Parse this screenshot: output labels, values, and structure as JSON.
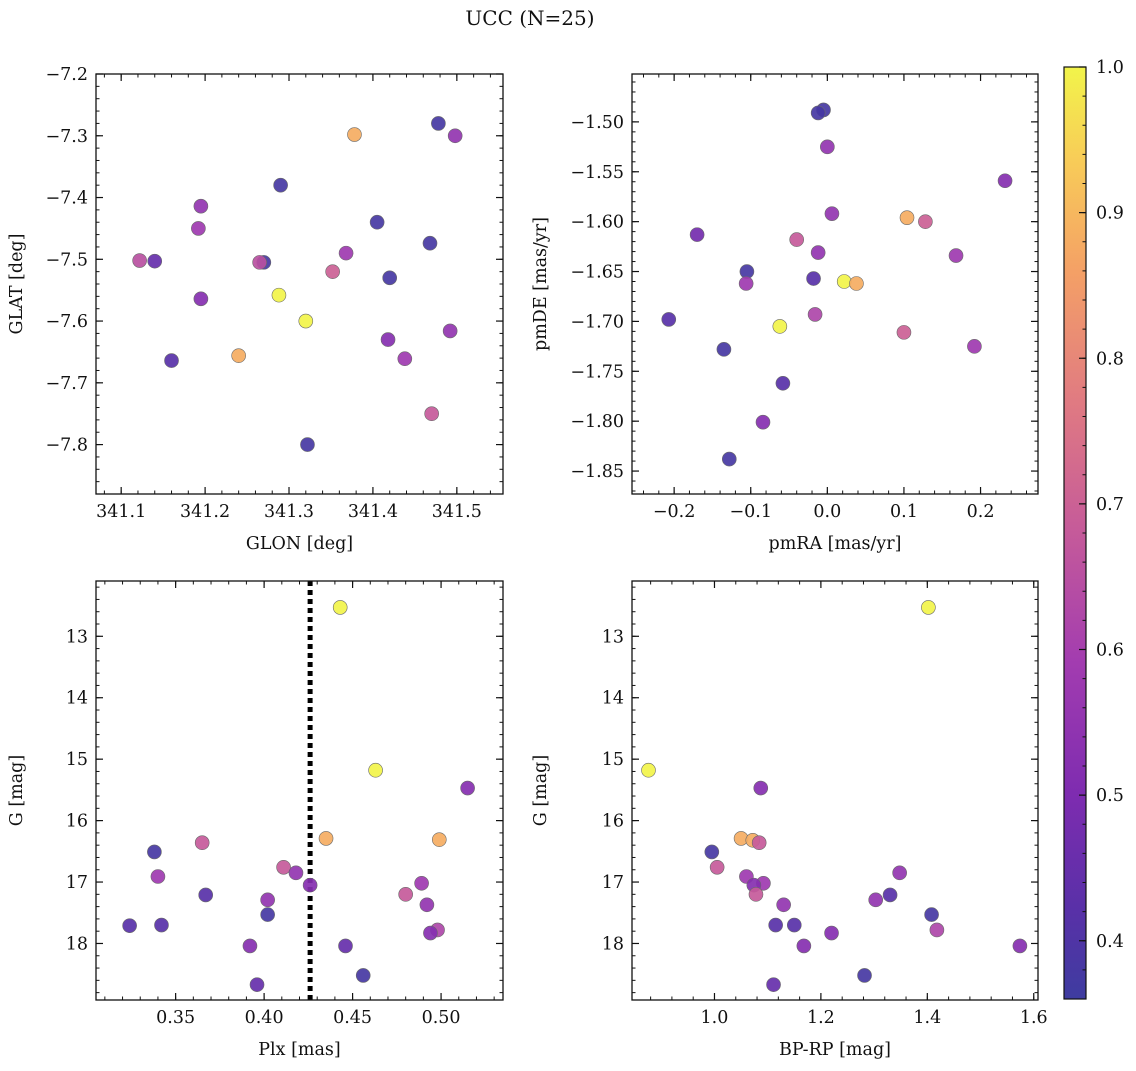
{
  "figure": {
    "title": "UCC (N=25)"
  },
  "chart_data": [
    {
      "type": "scatter",
      "title": "",
      "xlabel": "GLON [deg]",
      "ylabel": "GLAT [deg]",
      "xlim": [
        341.07,
        341.555
      ],
      "ylim": [
        -7.88,
        -7.2
      ],
      "y_inverted": false,
      "xticks": [
        341.1,
        341.2,
        341.3,
        341.4,
        341.5
      ],
      "xtick_labels": [
        "341.1",
        "341.2",
        "341.3",
        "341.4",
        "341.5"
      ],
      "yticks": [
        -7.2,
        -7.3,
        -7.4,
        -7.5,
        -7.6,
        -7.7,
        -7.8
      ],
      "ytick_labels": [
        "−7.2",
        "−7.3",
        "−7.4",
        "−7.5",
        "−7.6",
        "−7.7",
        "−7.8"
      ],
      "grid": false,
      "points": [
        {
          "x": 341.478,
          "y": -7.28,
          "c": 0.38
        },
        {
          "x": 341.498,
          "y": -7.3,
          "c": 0.55
        },
        {
          "x": 341.378,
          "y": -7.298,
          "c": 0.88
        },
        {
          "x": 341.29,
          "y": -7.38,
          "c": 0.38
        },
        {
          "x": 341.195,
          "y": -7.414,
          "c": 0.55
        },
        {
          "x": 341.192,
          "y": -7.45,
          "c": 0.58
        },
        {
          "x": 341.405,
          "y": -7.44,
          "c": 0.38
        },
        {
          "x": 341.468,
          "y": -7.474,
          "c": 0.38
        },
        {
          "x": 341.122,
          "y": -7.502,
          "c": 0.65
        },
        {
          "x": 341.14,
          "y": -7.503,
          "c": 0.45
        },
        {
          "x": 341.27,
          "y": -7.505,
          "c": 0.38
        },
        {
          "x": 341.265,
          "y": -7.505,
          "c": 0.65
        },
        {
          "x": 341.368,
          "y": -7.49,
          "c": 0.58
        },
        {
          "x": 341.352,
          "y": -7.52,
          "c": 0.7
        },
        {
          "x": 341.42,
          "y": -7.53,
          "c": 0.38
        },
        {
          "x": 341.288,
          "y": -7.558,
          "c": 1.0
        },
        {
          "x": 341.195,
          "y": -7.564,
          "c": 0.52
        },
        {
          "x": 341.32,
          "y": -7.6,
          "c": 1.0
        },
        {
          "x": 341.418,
          "y": -7.63,
          "c": 0.52
        },
        {
          "x": 341.492,
          "y": -7.616,
          "c": 0.55
        },
        {
          "x": 341.16,
          "y": -7.664,
          "c": 0.42
        },
        {
          "x": 341.24,
          "y": -7.656,
          "c": 0.88
        },
        {
          "x": 341.438,
          "y": -7.661,
          "c": 0.58
        },
        {
          "x": 341.47,
          "y": -7.75,
          "c": 0.68
        },
        {
          "x": 341.322,
          "y": -7.8,
          "c": 0.38
        }
      ]
    },
    {
      "type": "scatter",
      "title": "",
      "xlabel": "pmRA [mas/yr]",
      "ylabel": "pmDE [mas/yr]",
      "xlim": [
        -0.255,
        0.275
      ],
      "ylim": [
        -1.873,
        -1.452
      ],
      "y_inverted": false,
      "xticks": [
        -0.2,
        -0.1,
        0.0,
        0.1,
        0.2
      ],
      "xtick_labels": [
        "−0.2",
        "−0.1",
        "0.0",
        "0.1",
        "0.2"
      ],
      "yticks": [
        -1.5,
        -1.55,
        -1.6,
        -1.65,
        -1.7,
        -1.75,
        -1.8,
        -1.85
      ],
      "ytick_labels": [
        "−1.50",
        "−1.55",
        "−1.60",
        "−1.65",
        "−1.70",
        "−1.75",
        "−1.80",
        "−1.85"
      ],
      "grid": false,
      "points": [
        {
          "x": -0.005,
          "y": -1.488,
          "c": 0.38
        },
        {
          "x": -0.012,
          "y": -1.491,
          "c": 0.38
        },
        {
          "x": 0.0,
          "y": -1.525,
          "c": 0.55
        },
        {
          "x": 0.232,
          "y": -1.559,
          "c": 0.52
        },
        {
          "x": 0.006,
          "y": -1.592,
          "c": 0.55
        },
        {
          "x": 0.104,
          "y": -1.596,
          "c": 0.88
        },
        {
          "x": 0.128,
          "y": -1.6,
          "c": 0.7
        },
        {
          "x": -0.17,
          "y": -1.613,
          "c": 0.48
        },
        {
          "x": -0.04,
          "y": -1.618,
          "c": 0.68
        },
        {
          "x": -0.012,
          "y": -1.631,
          "c": 0.55
        },
        {
          "x": 0.168,
          "y": -1.634,
          "c": 0.58
        },
        {
          "x": -0.105,
          "y": -1.65,
          "c": 0.38
        },
        {
          "x": -0.018,
          "y": -1.657,
          "c": 0.42
        },
        {
          "x": 0.022,
          "y": -1.66,
          "c": 1.0
        },
        {
          "x": 0.038,
          "y": -1.662,
          "c": 0.88
        },
        {
          "x": -0.106,
          "y": -1.662,
          "c": 0.58
        },
        {
          "x": -0.016,
          "y": -1.693,
          "c": 0.62
        },
        {
          "x": -0.207,
          "y": -1.698,
          "c": 0.42
        },
        {
          "x": -0.062,
          "y": -1.705,
          "c": 1.0
        },
        {
          "x": 0.1,
          "y": -1.711,
          "c": 0.7
        },
        {
          "x": 0.192,
          "y": -1.725,
          "c": 0.58
        },
        {
          "x": -0.135,
          "y": -1.728,
          "c": 0.38
        },
        {
          "x": -0.058,
          "y": -1.762,
          "c": 0.42
        },
        {
          "x": -0.084,
          "y": -1.801,
          "c": 0.52
        },
        {
          "x": -0.128,
          "y": -1.838,
          "c": 0.38
        }
      ]
    },
    {
      "type": "scatter",
      "title": "",
      "xlabel": "Plx [mas]",
      "ylabel": "G [mag]",
      "xlim": [
        0.305,
        0.535
      ],
      "ylim": [
        18.92,
        12.1
      ],
      "y_inverted": true,
      "xticks": [
        0.35,
        0.4,
        0.45,
        0.5
      ],
      "xtick_labels": [
        "0.35",
        "0.40",
        "0.45",
        "0.50"
      ],
      "yticks": [
        13,
        14,
        15,
        16,
        17,
        18
      ],
      "ytick_labels": [
        "13",
        "14",
        "15",
        "16",
        "17",
        "18"
      ],
      "grid": false,
      "vline": {
        "x": 0.426,
        "style": "dotted",
        "color": "#000000"
      },
      "points": [
        {
          "x": 0.443,
          "y": 12.53,
          "c": 1.0
        },
        {
          "x": 0.463,
          "y": 15.18,
          "c": 1.0
        },
        {
          "x": 0.515,
          "y": 15.47,
          "c": 0.52
        },
        {
          "x": 0.435,
          "y": 16.29,
          "c": 0.88
        },
        {
          "x": 0.499,
          "y": 16.31,
          "c": 0.88
        },
        {
          "x": 0.365,
          "y": 16.36,
          "c": 0.68
        },
        {
          "x": 0.338,
          "y": 16.51,
          "c": 0.38
        },
        {
          "x": 0.411,
          "y": 16.76,
          "c": 0.68
        },
        {
          "x": 0.418,
          "y": 16.85,
          "c": 0.55
        },
        {
          "x": 0.34,
          "y": 16.91,
          "c": 0.58
        },
        {
          "x": 0.489,
          "y": 17.02,
          "c": 0.58
        },
        {
          "x": 0.426,
          "y": 17.05,
          "c": 0.52
        },
        {
          "x": 0.48,
          "y": 17.2,
          "c": 0.68
        },
        {
          "x": 0.367,
          "y": 17.21,
          "c": 0.42
        },
        {
          "x": 0.402,
          "y": 17.29,
          "c": 0.55
        },
        {
          "x": 0.492,
          "y": 17.37,
          "c": 0.55
        },
        {
          "x": 0.402,
          "y": 17.53,
          "c": 0.38
        },
        {
          "x": 0.324,
          "y": 17.71,
          "c": 0.42
        },
        {
          "x": 0.342,
          "y": 17.7,
          "c": 0.42
        },
        {
          "x": 0.498,
          "y": 17.78,
          "c": 0.62
        },
        {
          "x": 0.494,
          "y": 17.83,
          "c": 0.52
        },
        {
          "x": 0.392,
          "y": 18.04,
          "c": 0.52
        },
        {
          "x": 0.446,
          "y": 18.04,
          "c": 0.45
        },
        {
          "x": 0.456,
          "y": 18.52,
          "c": 0.38
        },
        {
          "x": 0.396,
          "y": 18.67,
          "c": 0.45
        }
      ]
    },
    {
      "type": "scatter",
      "title": "",
      "xlabel": "BP-RP [mag]",
      "ylabel": "G [mag]",
      "xlim": [
        0.845,
        1.608
      ],
      "ylim": [
        18.92,
        12.1
      ],
      "y_inverted": true,
      "xticks": [
        1.0,
        1.2,
        1.4,
        1.6
      ],
      "xtick_labels": [
        "1.0",
        "1.2",
        "1.4",
        "1.6"
      ],
      "yticks": [
        13,
        14,
        15,
        16,
        17,
        18
      ],
      "ytick_labels": [
        "13",
        "14",
        "15",
        "16",
        "17",
        "18"
      ],
      "grid": false,
      "points": [
        {
          "x": 1.402,
          "y": 12.53,
          "c": 1.0
        },
        {
          "x": 0.876,
          "y": 15.18,
          "c": 1.0
        },
        {
          "x": 1.087,
          "y": 15.47,
          "c": 0.52
        },
        {
          "x": 1.05,
          "y": 16.29,
          "c": 0.88
        },
        {
          "x": 1.072,
          "y": 16.32,
          "c": 0.88
        },
        {
          "x": 1.084,
          "y": 16.36,
          "c": 0.68
        },
        {
          "x": 0.995,
          "y": 16.51,
          "c": 0.38
        },
        {
          "x": 1.005,
          "y": 16.76,
          "c": 0.68
        },
        {
          "x": 1.348,
          "y": 16.85,
          "c": 0.55
        },
        {
          "x": 1.06,
          "y": 16.91,
          "c": 0.58
        },
        {
          "x": 1.092,
          "y": 17.02,
          "c": 0.58
        },
        {
          "x": 1.074,
          "y": 17.05,
          "c": 0.52
        },
        {
          "x": 1.078,
          "y": 17.2,
          "c": 0.68
        },
        {
          "x": 1.33,
          "y": 17.21,
          "c": 0.42
        },
        {
          "x": 1.303,
          "y": 17.29,
          "c": 0.55
        },
        {
          "x": 1.13,
          "y": 17.37,
          "c": 0.55
        },
        {
          "x": 1.408,
          "y": 17.53,
          "c": 0.38
        },
        {
          "x": 1.115,
          "y": 17.7,
          "c": 0.42
        },
        {
          "x": 1.15,
          "y": 17.7,
          "c": 0.42
        },
        {
          "x": 1.418,
          "y": 17.78,
          "c": 0.62
        },
        {
          "x": 1.22,
          "y": 17.83,
          "c": 0.52
        },
        {
          "x": 1.168,
          "y": 18.04,
          "c": 0.52
        },
        {
          "x": 1.574,
          "y": 18.04,
          "c": 0.52
        },
        {
          "x": 1.282,
          "y": 18.52,
          "c": 0.38
        },
        {
          "x": 1.111,
          "y": 18.67,
          "c": 0.45
        }
      ]
    }
  ],
  "colorbar": {
    "colormap": "plasma",
    "range": [
      0.36,
      1.0
    ],
    "ticks": [
      0.4,
      0.5,
      0.6,
      0.7,
      0.8,
      0.9,
      1.0
    ],
    "tick_labels": [
      "0.4",
      "0.5",
      "0.6",
      "0.7",
      "0.8",
      "0.9",
      "1.0"
    ]
  }
}
